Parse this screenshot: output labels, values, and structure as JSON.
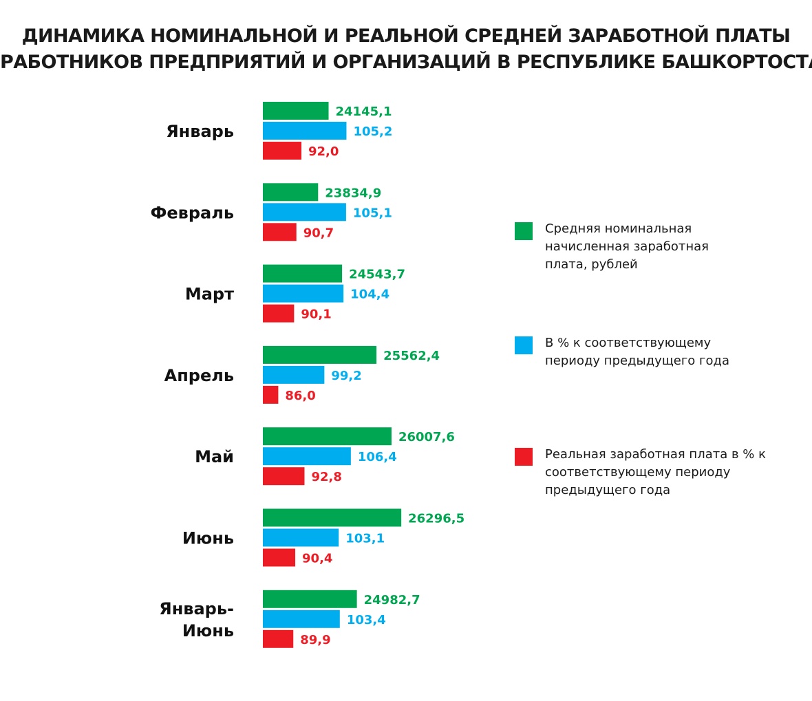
{
  "title": {
    "line1": "ДИНАМИКА НОМИНАЛЬНОЙ И РЕАЛЬНОЙ СРЕДНЕЙ ЗАРАБОТНОЙ ПЛАТЫ",
    "line2": "РАБОТНИКОВ ПРЕДПРИЯТИЙ И ОРГАНИЗАЦИЙ В РЕСПУБЛИКЕ БАШКОРТОСТАН"
  },
  "legend": {
    "items": [
      {
        "lines": [
          "Средняя номинальная",
          "начисленная заработная",
          "плата, рублей"
        ],
        "color": "#00a651"
      },
      {
        "lines": [
          "В % к соответствующему",
          "периоду предыдущего года"
        ],
        "color": "#00aeef"
      },
      {
        "lines": [
          "Реальная заработная плата в % к",
          "соответствующему периоду",
          "предыдущего года"
        ],
        "color": "#ed1c24"
      }
    ]
  },
  "chart_data": {
    "type": "bar",
    "orientation": "horizontal",
    "title": "ДИНАМИКА НОМИНАЛЬНОЙ И РЕАЛЬНОЙ СРЕДНЕЙ ЗАРАБОТНОЙ ПЛАТЫ РАБОТНИКОВ ПРЕДПРИЯТИЙ И ОРГАНИЗАЦИЙ В РЕСПУБЛИКЕ БАШКОРТОСТАН",
    "categories": [
      "Январь",
      "Февраль",
      "Март",
      "Апрель",
      "Май",
      "Июнь",
      "Январь-Июнь"
    ],
    "category_lines": [
      [
        "Январь"
      ],
      [
        "Февраль"
      ],
      [
        "Март"
      ],
      [
        "Апрель"
      ],
      [
        "Май"
      ],
      [
        "Июнь"
      ],
      [
        "Январь-",
        "Июнь"
      ]
    ],
    "series": [
      {
        "name": "Средняя номинальная начисленная заработная плата, рублей",
        "color": "#00a651",
        "label_color": "#00a651",
        "values": [
          24145.1,
          23834.9,
          24543.7,
          25562.4,
          26007.6,
          26296.5,
          24982.7
        ],
        "labels": [
          "24145,1",
          "23834,9",
          "24543,7",
          "25562,4",
          "26007,6",
          "26296,5",
          "24982,7"
        ]
      },
      {
        "name": "В % к соответствующему периоду предыдущего года",
        "color": "#00aeef",
        "label_color": "#00aeef",
        "values": [
          105.2,
          105.1,
          104.4,
          99.2,
          106.4,
          103.1,
          103.4
        ],
        "labels": [
          "105,2",
          "105,1",
          "104,4",
          "99,2",
          "106,4",
          "103,1",
          "103,4"
        ]
      },
      {
        "name": "Реальная заработная плата в % к соответствующему периоду предыдущего года",
        "color": "#ed1c24",
        "label_color": "#ed1c24",
        "values": [
          92.0,
          90.7,
          90.1,
          86.0,
          92.8,
          90.4,
          89.9
        ],
        "labels": [
          "92,0",
          "90,7",
          "90,1",
          "86,0",
          "92,8",
          "90,4",
          "89,9"
        ]
      }
    ],
    "legend_position": "right",
    "grid": false
  }
}
